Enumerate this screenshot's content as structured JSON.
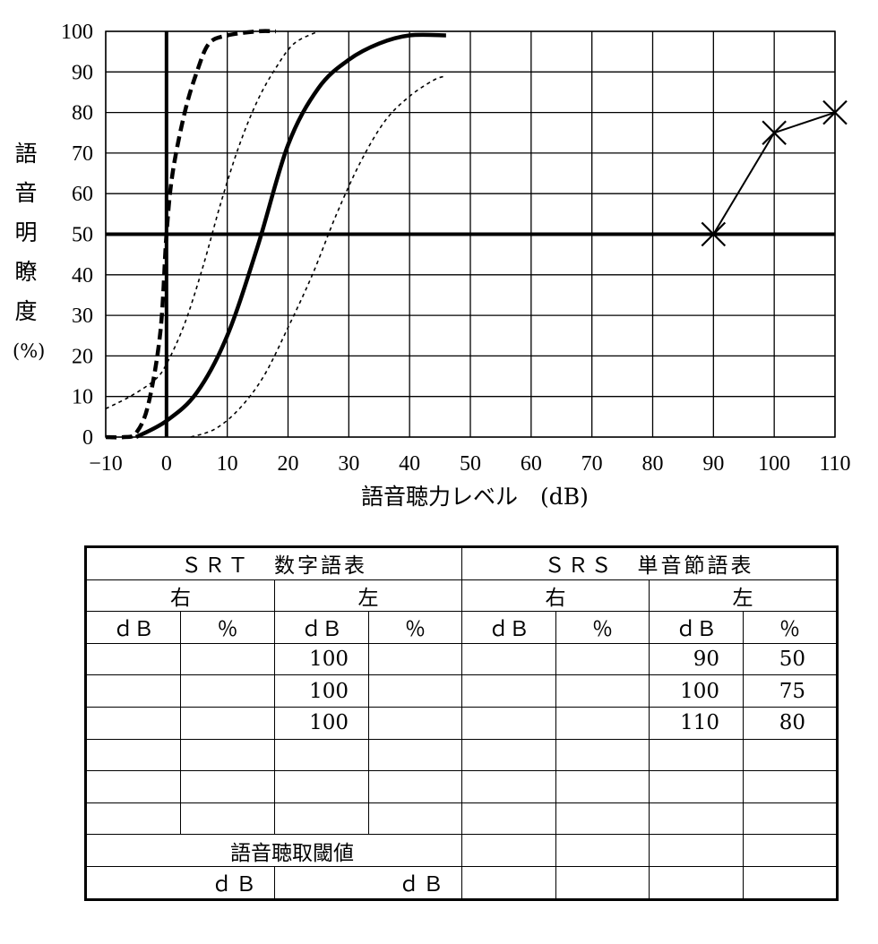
{
  "chart_data": {
    "type": "line",
    "xlabel": "語音聴力レベル　(dB)",
    "ylabel_chars": [
      "語",
      "音",
      "明",
      "瞭",
      "度"
    ],
    "ylabel_unit": "(%)",
    "xlim": [
      -10,
      110
    ],
    "ylim": [
      0,
      100
    ],
    "x_ticks": [
      -10,
      0,
      10,
      20,
      30,
      40,
      50,
      60,
      70,
      80,
      90,
      100,
      110
    ],
    "y_ticks": [
      0,
      10,
      20,
      30,
      40,
      50,
      60,
      70,
      80,
      90,
      100
    ],
    "grid": true,
    "reference_lines": {
      "vertical_x": 0,
      "horizontal_y": 50
    },
    "reference_curves": [
      {
        "style": "solid-thick",
        "points": [
          [
            -5,
            0
          ],
          [
            0,
            4
          ],
          [
            5,
            11
          ],
          [
            10,
            25
          ],
          [
            15,
            47
          ],
          [
            20,
            72
          ],
          [
            25,
            86
          ],
          [
            30,
            93
          ],
          [
            35,
            97
          ],
          [
            40,
            99
          ],
          [
            46,
            99
          ]
        ]
      },
      {
        "style": "dashed-thick",
        "points": [
          [
            -10,
            0
          ],
          [
            -7,
            0
          ],
          [
            -5,
            1
          ],
          [
            -3,
            8
          ],
          [
            -1,
            26
          ],
          [
            0,
            50
          ],
          [
            1,
            65
          ],
          [
            3,
            80
          ],
          [
            5,
            90
          ],
          [
            7,
            97
          ],
          [
            10,
            99
          ],
          [
            15,
            100
          ],
          [
            18,
            100
          ]
        ]
      },
      {
        "style": "dotted-thin",
        "points": [
          [
            -10,
            7
          ],
          [
            -6,
            10
          ],
          [
            -2,
            14
          ],
          [
            0,
            18
          ],
          [
            3,
            28
          ],
          [
            6,
            42
          ],
          [
            9,
            58
          ],
          [
            12,
            72
          ],
          [
            15,
            83
          ],
          [
            18,
            91
          ],
          [
            21,
            97
          ],
          [
            25,
            100
          ]
        ]
      },
      {
        "style": "dotted-thin",
        "points": [
          [
            4,
            0
          ],
          [
            8,
            2
          ],
          [
            12,
            7
          ],
          [
            16,
            15
          ],
          [
            20,
            27
          ],
          [
            24,
            40
          ],
          [
            28,
            55
          ],
          [
            32,
            68
          ],
          [
            36,
            78
          ],
          [
            40,
            84
          ],
          [
            44,
            88
          ],
          [
            46,
            89
          ]
        ]
      }
    ],
    "series": [
      {
        "marker": "x",
        "points": [
          [
            90,
            50
          ],
          [
            100,
            75
          ],
          [
            110,
            80
          ]
        ]
      }
    ]
  },
  "table": {
    "srt_header": "ＳＲＴ　数字語表",
    "srs_header": "ＳＲＳ　単音節語表",
    "right": "右",
    "left": "左",
    "col_db": "ｄＢ",
    "col_pct": "％",
    "rows": [
      [
        "",
        "",
        "100",
        "",
        "",
        "",
        "90",
        "50"
      ],
      [
        "",
        "",
        "100",
        "",
        "",
        "",
        "100",
        "75"
      ],
      [
        "",
        "",
        "100",
        "",
        "",
        "",
        "110",
        "80"
      ],
      [
        "",
        "",
        "",
        "",
        "",
        "",
        "",
        ""
      ],
      [
        "",
        "",
        "",
        "",
        "",
        "",
        "",
        ""
      ],
      [
        "",
        "",
        "",
        "",
        "",
        "",
        "",
        ""
      ]
    ],
    "threshold_label": "語音聴取閾値",
    "threshold_unit_right": "ｄＢ",
    "threshold_unit_left": "ｄＢ"
  }
}
